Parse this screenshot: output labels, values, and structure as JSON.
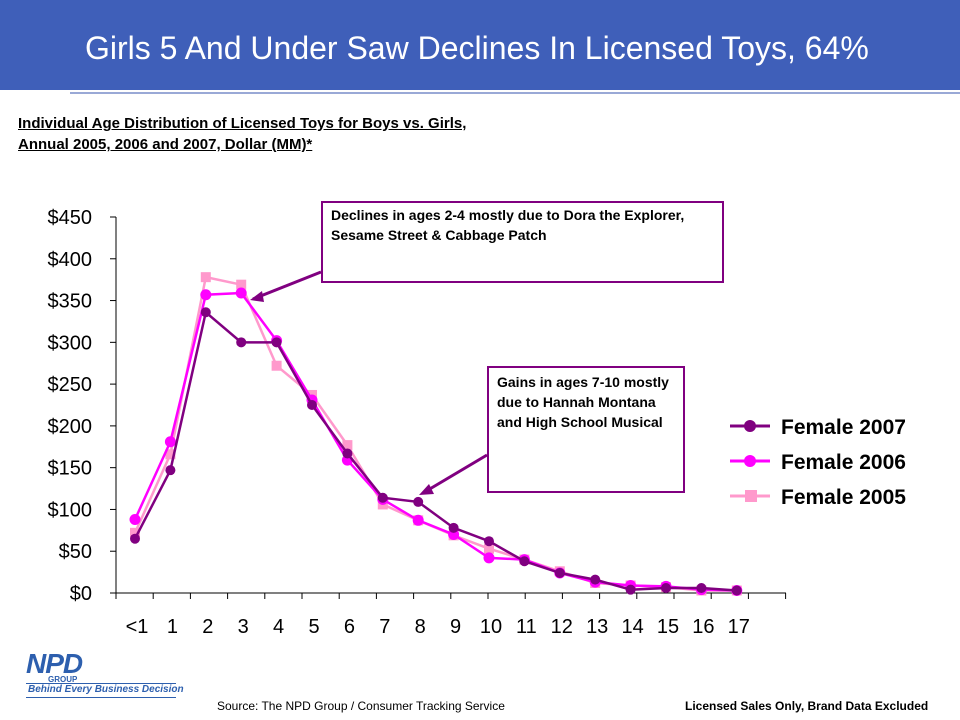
{
  "slide": {
    "title": "Girls 5 And Under Saw Declines In Licensed Toys, 64%",
    "subtitle_line1": "Individual Age Distribution of Licensed Toys for Boys vs. Girls,",
    "subtitle_line2": "Annual 2005, 2006 and 2007, Dollar (MM)*",
    "callout_1": "Declines in ages 2-4 mostly due to Dora the Explorer, Sesame Street & Cabbage Patch",
    "callout_2": "Gains in ages 7-10 mostly due to Hannah Montana and High School Musical",
    "source": "Source:  The NPD Group / Consumer Tracking Service",
    "footnote": "Licensed Sales Only, Brand Data Excluded",
    "logo_text": "NPD",
    "logo_group": "GROUP",
    "logo_tagline": "Behind Every Business Decision"
  },
  "chart_data": {
    "type": "line",
    "categories": [
      "<1",
      "1",
      "2",
      "3",
      "4",
      "5",
      "6",
      "7",
      "8",
      "9",
      "10",
      "11",
      "12",
      "13",
      "14",
      "15",
      "16",
      "17"
    ],
    "ylim": [
      0,
      450
    ],
    "yticks": [
      0,
      50,
      100,
      150,
      200,
      250,
      300,
      350,
      400,
      450
    ],
    "ytick_labels": [
      "$0",
      "$50",
      "$100",
      "$150",
      "$200",
      "$250",
      "$300",
      "$350",
      "$400",
      "$450"
    ],
    "series": [
      {
        "name": "Female 2007",
        "color": "#800080",
        "values": [
          65,
          147,
          336,
          300,
          300,
          225,
          167,
          114,
          109,
          78,
          62,
          38,
          24,
          16,
          4,
          6,
          6,
          3
        ]
      },
      {
        "name": "Female 2006",
        "color": "#ff00ff",
        "values": [
          88,
          181,
          357,
          359,
          302,
          231,
          159,
          112,
          87,
          70,
          42,
          40,
          24,
          13,
          9,
          8,
          4,
          3
        ]
      },
      {
        "name": "Female 2005",
        "color": "#ff99cc",
        "values": [
          72,
          166,
          378,
          369,
          272,
          237,
          177,
          106,
          87,
          69,
          53,
          40,
          26,
          12,
          9,
          7,
          3,
          3
        ]
      }
    ],
    "legend_position": "right"
  }
}
